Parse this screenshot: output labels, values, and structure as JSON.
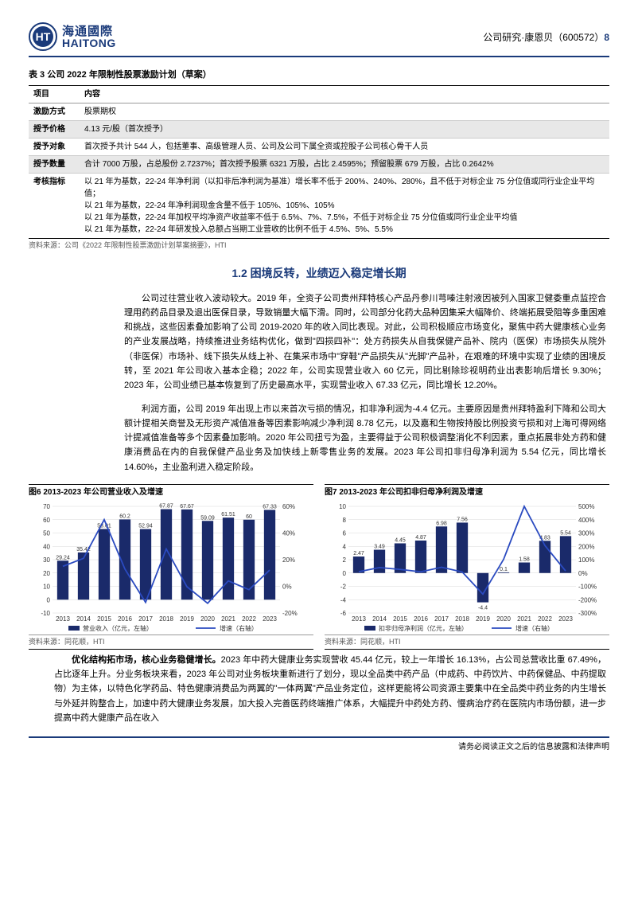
{
  "header": {
    "logo_cn": "海通國際",
    "logo_en": "HAITONG",
    "right_prefix": "公司研究·康恩贝（",
    "stock_code": "600572",
    "right_suffix": "）",
    "page_num": "8"
  },
  "table3": {
    "title": "表 3 公司 2022 年限制性股票激励计划（草案）",
    "head_item": "项目",
    "head_content": "内容",
    "rows": [
      {
        "item": "激励方式",
        "content": "股票期权"
      },
      {
        "item": "授予价格",
        "content": "4.13 元/股（首次授予）"
      },
      {
        "item": "授予对象",
        "content": "首次授予共计 544 人，包括董事、高级管理人员、公司及公司下属全资或控股子公司核心骨干人员"
      },
      {
        "item": "授予数量",
        "content": "合计 7000 万股，占总股份 2.7237%；首次授予股票 6321 万股，占比 2.4595%；预留股票 679 万股，占比 0.2642%"
      },
      {
        "item": "考核指标",
        "content": "以 21 年为基数，22-24 年净利润（以扣非后净利润为基准）增长率不低于 200%、240%、280%，且不低于对标企业 75 分位值或同行业企业平均值；\n以 21 年为基数，22-24 年净利润现金含量不低于 105%、105%、105%\n以 21 年为基数，22-24 年加权平均净资产收益率不低于 6.5%、7%、7.5%，不低于对标企业 75 分位值或同行业企业平均值\n以 21 年为基数，22-24 年研发投入总额占当期工业营收的比例不低于 4.5%、5%、5.5%"
      }
    ],
    "source": "资料来源：公司《2022 年限制性股票激励计划草案摘要》，HTI"
  },
  "section": {
    "title": "1.2 困境反转，业绩迈入稳定增长期",
    "para1": "公司过往营业收入波动较大。2019 年，全资子公司贵州拜特核心产品丹参川芎嗪注射液因被列入国家卫健委重点监控合理用药药品目录及退出医保目录，导致销量大幅下滑。同时，公司部分化药大品种因集采大幅降价、终端拓展受阻等多重困难和挑战，这些因素叠加影响了公司 2019-2020 年的收入同比表现。对此，公司积极顺应市场变化，聚焦中药大健康核心业务的产业发展战略，持续推进业务结构优化，做到\"四损四补\"：处方药损失从自我保健产品补、院内（医保）市场损失从院外（非医保）市场补、线下损失从线上补、在集采市场中\"穿鞋\"产品损失从\"光脚\"产品补，在艰难的环境中实现了业绩的困境反转，至 2021 年公司收入基本企稳；2022 年，公司实现营业收入 60 亿元，同比剔除珍视明药业出表影响后增长 9.30%；2023 年，公司业绩已基本恢复到了历史最高水平，实现营业收入 67.33 亿元，同比增长 12.20%。",
    "para2": "利润方面，公司 2019 年出现上市以来首次亏损的情况，扣非净利润为-4.4 亿元。主要原因是贵州拜特盈利下降和公司大额计提相关商誉及无形资产减值准备等因素影响减少净利润 8.78 亿元，以及嘉和生物按持股比例投资亏损和对上海可得网络计提减值准备等多个因素叠加影响。2020 年公司扭亏为盈，主要得益于公司积极调整消化不利因素，重点拓展非处方药和健康消费品在内的自我保健产品业务及加快线上新零售业务的发展。2023 年公司扣非归母净利润为 5.54 亿元，同比增长 14.60%，主业盈利进入稳定阶段。",
    "para3_lead": "优化结构拓市场，核心业务稳健增长。",
    "para3": "2023 年中药大健康业务实现营收 45.44 亿元，较上一年增长 16.13%，占公司总营收比重 67.49%，占比逐年上升。分业务板块来看，2023 年公司对业务板块重新进行了划分，现以全品类中药产品（中成药、中药饮片、中药保健品、中药提取物）为主体，以特色化学药品、特色健康消费品为两翼的\"一体两翼\"产品业务定位，这样更能将公司资源主要集中在全品类中药业务的内生增长与外延并购整合上，加速中药大健康业务发展，加大投入完善医药终端推广体系，大幅提升中药处方药、慢病治疗药在医院内市场份额，进一步提高中药大健康产品在收入"
  },
  "chart6": {
    "title": "图6  2013-2023 年公司营业收入及增速",
    "years": [
      "2013",
      "2014",
      "2015",
      "2016",
      "2017",
      "2018",
      "2019",
      "2020",
      "2021",
      "2022",
      "2023"
    ],
    "bars": [
      29.24,
      35.42,
      53.01,
      60.2,
      52.94,
      67.87,
      67.67,
      59.09,
      61.51,
      60,
      67.33
    ],
    "left_ticks": [
      -10,
      0,
      10,
      20,
      30,
      40,
      50,
      60,
      70
    ],
    "right_ticks": [
      -20,
      0,
      20,
      40,
      60
    ],
    "right_suffix": "%",
    "growth": [
      15,
      21,
      50,
      13,
      -12,
      28,
      -0.3,
      -12.7,
      4.1,
      -2.5,
      12.2
    ],
    "legend_bar": "营业收入（亿元，左轴）",
    "legend_line": "增速（右轴）",
    "source": "资料来源：同花顺，HTI",
    "colors": {
      "bar": "#1a2a6a",
      "line": "#2a4ac0",
      "grid": "#d8d8d8"
    }
  },
  "chart7": {
    "title": "图7  2013-2023 年公司扣非归母净利润及增速",
    "years": [
      "2013",
      "2014",
      "2015",
      "2016",
      "2017",
      "2018",
      "2019",
      "2020",
      "2021",
      "2022",
      "2023"
    ],
    "bars": [
      2.47,
      3.49,
      4.45,
      4.87,
      6.98,
      7.56,
      -4.4,
      0.1,
      1.58,
      4.83,
      5.54
    ],
    "show_label": [
      true,
      true,
      true,
      true,
      true,
      true,
      true,
      true,
      true,
      true,
      true
    ],
    "left_ticks": [
      -6,
      -4,
      -2,
      0,
      2,
      4,
      6,
      8,
      10
    ],
    "right_ticks": [
      -300,
      -200,
      -100,
      0,
      100,
      200,
      300,
      400,
      500
    ],
    "right_suffix": "%",
    "growth": [
      10,
      41,
      27,
      9,
      43,
      8,
      -158,
      102,
      1480,
      206,
      15
    ],
    "growth_clip_max": 500,
    "growth_clip_min": -300,
    "legend_bar": "扣非归母净利润（亿元，左轴）",
    "legend_line": "增速（右轴）",
    "source": "资料来源：同花顺，HTI",
    "colors": {
      "bar": "#1a2a6a",
      "line": "#2a4ac0",
      "grid": "#d8d8d8"
    }
  },
  "footer": {
    "text": "请务必阅读正文之后的信息披露和法律声明"
  }
}
